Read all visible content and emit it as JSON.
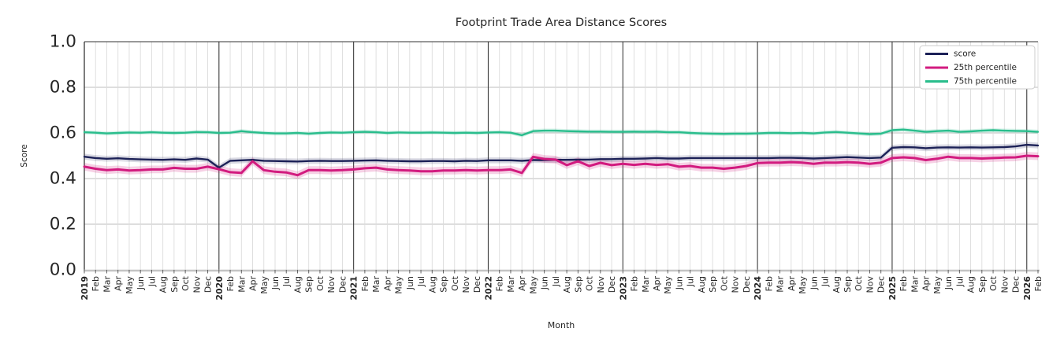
{
  "title": "Footprint Trade Area Distance Scores",
  "axes": {
    "x_label": "Month",
    "y_label": "Score",
    "y_ticks": [
      "0.0",
      "0.2",
      "0.4",
      "0.6",
      "0.8",
      "1.0"
    ],
    "y_range": [
      0.0,
      1.0
    ]
  },
  "legend": {
    "position": "upper right",
    "items": [
      {
        "label": "score",
        "color": "#1c2157"
      },
      {
        "label": "25th percentile",
        "color": "#d21b7f"
      },
      {
        "label": "75th percentile",
        "color": "#29bd8c"
      }
    ]
  },
  "colors": {
    "score_line": "#1c2157",
    "p25_line": "#d21b7f",
    "p75_line": "#29bd8c",
    "year_gridline": "#3d3d3d",
    "month_gridline": "#dcdcdc",
    "h_gridline": "#cbcbcb",
    "bottom_axis": "#c4c4c4",
    "spine": "#333333"
  },
  "chart_data": {
    "type": "line",
    "title": "Footprint Trade Area Distance Scores",
    "xlabel": "Month",
    "ylabel": "Score",
    "ylim": [
      0.0,
      1.0
    ],
    "grid": "on",
    "legend_position": "upper right",
    "x": [
      "2019",
      "Feb",
      "Mar",
      "Apr",
      "May",
      "Jun",
      "Jul",
      "Aug",
      "Sep",
      "Oct",
      "Nov",
      "Dec",
      "2020",
      "Feb",
      "Mar",
      "Apr",
      "May",
      "Jun",
      "Jul",
      "Aug",
      "Sep",
      "Oct",
      "Nov",
      "Dec",
      "2021",
      "Feb",
      "Mar",
      "Apr",
      "May",
      "Jun",
      "Jul",
      "Aug",
      "Sep",
      "Oct",
      "Nov",
      "Dec",
      "2022",
      "Feb",
      "Mar",
      "Apr",
      "May",
      "Jun",
      "Jul",
      "Aug",
      "Sep",
      "Oct",
      "Nov",
      "Dec",
      "2023",
      "Feb",
      "Mar",
      "Apr",
      "May",
      "Jun",
      "Jul",
      "Aug",
      "Sep",
      "Oct",
      "Nov",
      "Dec",
      "2024",
      "Feb",
      "Mar",
      "Apr",
      "May",
      "Jun",
      "Jul",
      "Aug",
      "Sep",
      "Oct",
      "Nov",
      "Dec",
      "2025",
      "Feb",
      "Mar",
      "Apr",
      "May",
      "Jun",
      "Jul",
      "Aug",
      "Sep",
      "Oct",
      "Nov",
      "Dec",
      "2026",
      "Feb"
    ],
    "series": [
      {
        "name": "score",
        "color": "#1c2157",
        "line_width": 2.4,
        "band_halfwidth": 0.013,
        "band_opacity": 0.16,
        "values": [
          0.496,
          0.49,
          0.487,
          0.489,
          0.486,
          0.484,
          0.483,
          0.482,
          0.484,
          0.482,
          0.488,
          0.483,
          0.448,
          0.478,
          0.48,
          0.482,
          0.478,
          0.477,
          0.476,
          0.475,
          0.477,
          0.478,
          0.477,
          0.477,
          0.478,
          0.479,
          0.48,
          0.478,
          0.477,
          0.476,
          0.476,
          0.477,
          0.477,
          0.476,
          0.478,
          0.477,
          0.48,
          0.48,
          0.48,
          0.478,
          0.481,
          0.481,
          0.482,
          0.482,
          0.483,
          0.483,
          0.485,
          0.485,
          0.487,
          0.487,
          0.488,
          0.49,
          0.488,
          0.488,
          0.49,
          0.49,
          0.49,
          0.49,
          0.49,
          0.49,
          0.49,
          0.49,
          0.491,
          0.491,
          0.49,
          0.488,
          0.49,
          0.492,
          0.494,
          0.492,
          0.49,
          0.492,
          0.535,
          0.538,
          0.537,
          0.533,
          0.536,
          0.537,
          0.536,
          0.537,
          0.536,
          0.537,
          0.538,
          0.541,
          0.548,
          0.545
        ]
      },
      {
        "name": "25th percentile",
        "color": "#d21b7f",
        "line_width": 3.0,
        "band_halfwidth": 0.017,
        "band_opacity": 0.2,
        "values": [
          0.452,
          0.443,
          0.437,
          0.44,
          0.435,
          0.437,
          0.44,
          0.44,
          0.447,
          0.443,
          0.443,
          0.452,
          0.441,
          0.428,
          0.425,
          0.476,
          0.437,
          0.43,
          0.427,
          0.415,
          0.437,
          0.437,
          0.435,
          0.437,
          0.44,
          0.445,
          0.448,
          0.44,
          0.437,
          0.435,
          0.432,
          0.432,
          0.435,
          0.435,
          0.437,
          0.435,
          0.437,
          0.437,
          0.44,
          0.425,
          0.495,
          0.486,
          0.483,
          0.459,
          0.476,
          0.455,
          0.469,
          0.459,
          0.465,
          0.46,
          0.465,
          0.46,
          0.463,
          0.452,
          0.455,
          0.448,
          0.448,
          0.443,
          0.448,
          0.455,
          0.468,
          0.47,
          0.47,
          0.472,
          0.47,
          0.465,
          0.47,
          0.47,
          0.472,
          0.47,
          0.465,
          0.47,
          0.49,
          0.493,
          0.49,
          0.481,
          0.487,
          0.496,
          0.49,
          0.49,
          0.488,
          0.49,
          0.492,
          0.493,
          0.5,
          0.498
        ]
      },
      {
        "name": "75th percentile",
        "color": "#29bd8c",
        "line_width": 2.4,
        "band_halfwidth": 0.009,
        "band_opacity": 0.18,
        "values": [
          0.603,
          0.601,
          0.598,
          0.6,
          0.602,
          0.601,
          0.603,
          0.601,
          0.6,
          0.601,
          0.604,
          0.603,
          0.6,
          0.601,
          0.608,
          0.603,
          0.6,
          0.598,
          0.598,
          0.6,
          0.597,
          0.6,
          0.602,
          0.601,
          0.603,
          0.605,
          0.603,
          0.6,
          0.602,
          0.601,
          0.601,
          0.602,
          0.601,
          0.6,
          0.601,
          0.6,
          0.602,
          0.603,
          0.601,
          0.59,
          0.608,
          0.61,
          0.61,
          0.608,
          0.607,
          0.606,
          0.606,
          0.605,
          0.605,
          0.606,
          0.605,
          0.606,
          0.603,
          0.603,
          0.6,
          0.598,
          0.597,
          0.596,
          0.597,
          0.597,
          0.598,
          0.6,
          0.6,
          0.599,
          0.6,
          0.598,
          0.602,
          0.604,
          0.601,
          0.598,
          0.595,
          0.597,
          0.612,
          0.615,
          0.61,
          0.605,
          0.608,
          0.61,
          0.605,
          0.607,
          0.61,
          0.612,
          0.61,
          0.609,
          0.608,
          0.605
        ]
      }
    ]
  }
}
